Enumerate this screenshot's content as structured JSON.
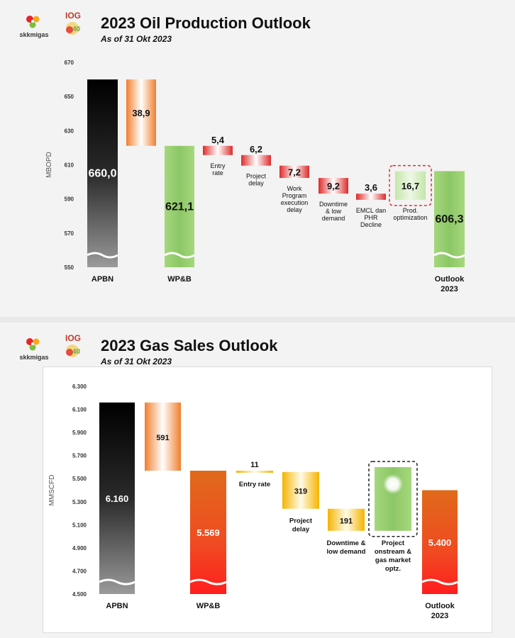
{
  "logos": {
    "skk_text": "skkmigas",
    "ioc_text": "IOG 4.0"
  },
  "chart_data": [
    {
      "type": "waterfall",
      "title": "2023 Oil Production Outlook",
      "subtitle": "As of 31 Okt 2023",
      "ylabel": "MBOPD",
      "ylim": [
        550,
        670
      ],
      "yticks": [
        "550",
        "570",
        "590",
        "610",
        "630",
        "650",
        "670"
      ],
      "bars": [
        {
          "category": "APBN",
          "value": 660.0,
          "label": "660,0",
          "kind": "total",
          "color": "black"
        },
        {
          "category": "",
          "value": 38.9,
          "label": "38,9",
          "kind": "decrease",
          "color": "orange"
        },
        {
          "category": "WP&B",
          "value": 621.1,
          "label": "621,1",
          "kind": "total",
          "color": "green"
        },
        {
          "category": "Entry rate",
          "value": 5.4,
          "label": "5,4",
          "kind": "decrease",
          "color": "red"
        },
        {
          "category": "Project delay",
          "value": 6.2,
          "label": "6,2",
          "kind": "decrease",
          "color": "red"
        },
        {
          "category": "Work Program execution delay",
          "value": 7.2,
          "label": "7,2",
          "kind": "decrease",
          "color": "red"
        },
        {
          "category": "Downtime & low demand",
          "value": 9.2,
          "label": "9,2",
          "kind": "decrease",
          "color": "red"
        },
        {
          "category": "EMCL dan PHR Decline",
          "value": 3.6,
          "label": "3,6",
          "kind": "decrease",
          "color": "red"
        },
        {
          "category": "Prod. optimization",
          "value": 16.7,
          "label": "16,7",
          "kind": "increase",
          "color": "lightgreen",
          "highlight": true
        },
        {
          "category": "Outlook 2023",
          "value": 606.3,
          "label": "606,3",
          "kind": "total",
          "color": "green"
        }
      ]
    },
    {
      "type": "waterfall",
      "title": "2023 Gas Sales Outlook",
      "subtitle": "As of 31 Okt 2023",
      "ylabel": "MMSCFD",
      "ylim": [
        4500,
        6300
      ],
      "yticks": [
        "4.500",
        "4.700",
        "4.900",
        "5.100",
        "5.300",
        "5.500",
        "5.700",
        "5.900",
        "6.100",
        "6.300"
      ],
      "bars": [
        {
          "category": "APBN",
          "value": 6160,
          "label": "6.160",
          "kind": "total",
          "color": "black"
        },
        {
          "category": "",
          "value": 591,
          "label": "591",
          "kind": "decrease",
          "color": "orange"
        },
        {
          "category": "WP&B",
          "value": 5569,
          "label": "5.569",
          "kind": "total",
          "color": "redorange"
        },
        {
          "category": "Entry rate",
          "value": 11,
          "label": "11",
          "kind": "decrease",
          "color": "yellow"
        },
        {
          "category": "Project delay",
          "value": 319,
          "label": "319",
          "kind": "decrease",
          "color": "yellow"
        },
        {
          "category": "Downtime & low demand",
          "value": 191,
          "label": "191",
          "kind": "decrease",
          "color": "yellow"
        },
        {
          "category": "Project onstream & gas market optz.",
          "value": null,
          "label": "",
          "kind": "increase",
          "color": "green",
          "highlight": true
        },
        {
          "category": "Outlook 2023",
          "value": 5400,
          "label": "5.400",
          "kind": "total",
          "color": "redorange"
        }
      ]
    }
  ]
}
